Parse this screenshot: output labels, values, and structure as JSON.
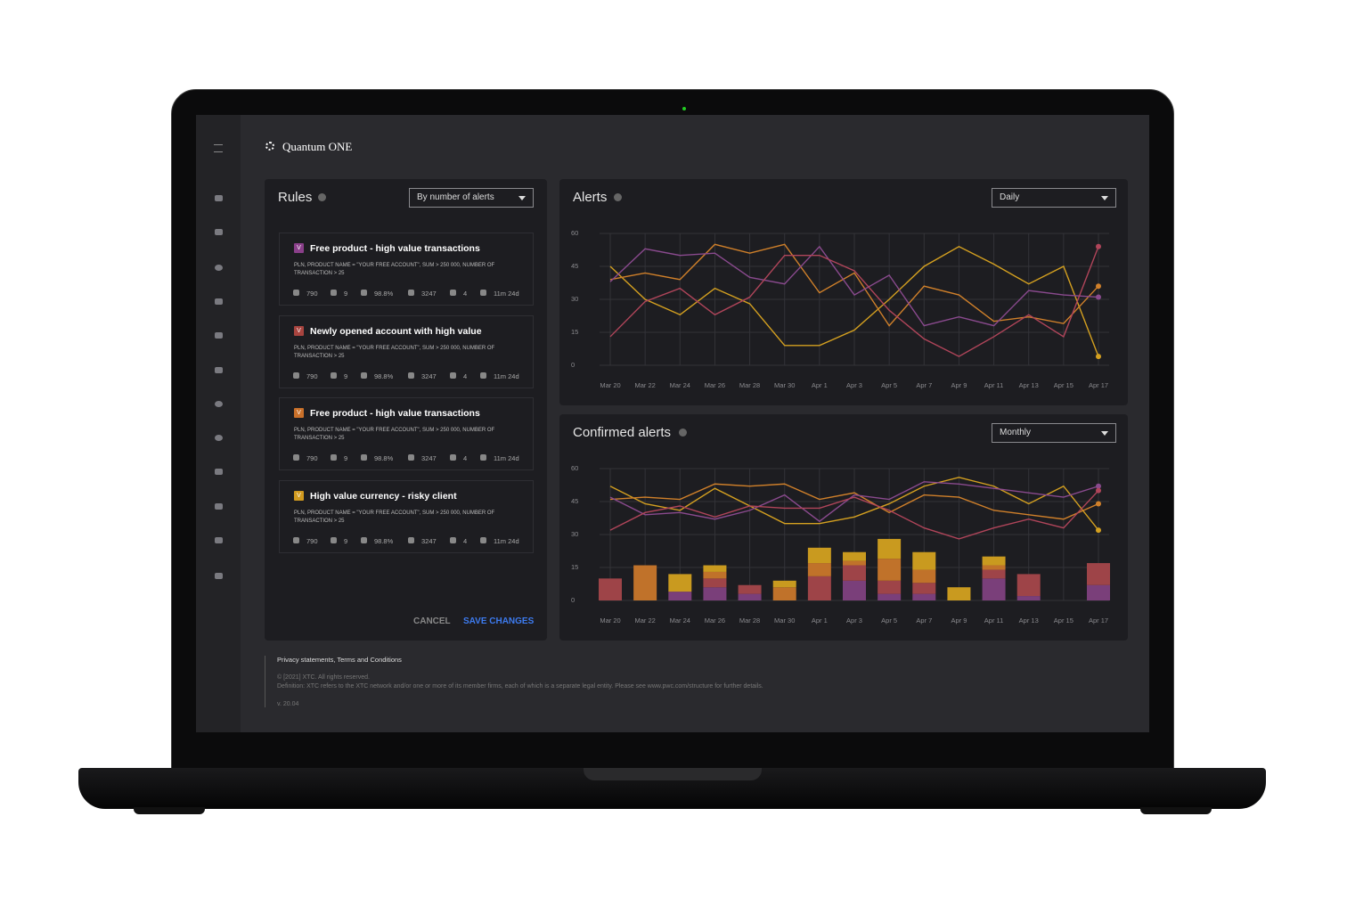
{
  "header": {
    "title": "Quantum ONE"
  },
  "rules": {
    "title": "Rules",
    "dropdown": "By number of alerts",
    "cards": [
      {
        "badge": "V",
        "color": "#8a3f8a",
        "title": "Free product - high value transactions",
        "description": "PLN, PRODUCT NAME = \"YOUR FREE ACCOUNT\", SUM > 250 000, NUMBER OF TRANSACTION > 25",
        "stats": [
          "790",
          "9",
          "98.8%",
          "3247",
          "4",
          "11m 24d"
        ]
      },
      {
        "badge": "V",
        "color": "#a8443f",
        "title": "Newly opened account with high value",
        "description": "PLN, PRODUCT NAME = \"YOUR FREE ACCOUNT\", SUM > 250 000, NUMBER OF TRANSACTION > 25",
        "stats": [
          "790",
          "9",
          "98.8%",
          "3247",
          "4",
          "11m 24d"
        ]
      },
      {
        "badge": "V",
        "color": "#c9702a",
        "title": "Free product - high value transactions",
        "description": "PLN, PRODUCT NAME = \"YOUR FREE ACCOUNT\", SUM > 250 000, NUMBER OF TRANSACTION > 25",
        "stats": [
          "790",
          "9",
          "98.8%",
          "3247",
          "4",
          "11m 24d"
        ]
      },
      {
        "badge": "V",
        "color": "#d19a1f",
        "title": "High value currency - risky client",
        "description": "PLN, PRODUCT NAME = \"YOUR FREE ACCOUNT\", SUM > 250 000, NUMBER OF TRANSACTION > 25",
        "stats": [
          "790",
          "9",
          "98.8%",
          "3247",
          "4",
          "11m 24d"
        ]
      }
    ],
    "cancel": "CANCEL",
    "save": "SAVE CHANGES"
  },
  "chart_data": [
    {
      "type": "line",
      "title": "Alerts",
      "dropdown": "Daily",
      "categories": [
        "Mar 20",
        "Mar 22",
        "Mar 24",
        "Mar 26",
        "Mar 28",
        "Mar 30",
        "Apr 1",
        "Apr 3",
        "Apr 5",
        "Apr 7",
        "Apr 9",
        "Apr 11",
        "Apr 13",
        "Apr 15",
        "Apr 17"
      ],
      "ylim": [
        0,
        60
      ],
      "yticks": [
        0,
        15,
        30,
        45,
        60
      ],
      "grid": true,
      "series": [
        {
          "kind": "line",
          "color": "#d4a020",
          "values": [
            45,
            30,
            23,
            35,
            28,
            9,
            9,
            16,
            30,
            45,
            54,
            46,
            37,
            45,
            4
          ]
        },
        {
          "kind": "line",
          "color": "#d0802a",
          "values": [
            39,
            42,
            39,
            55,
            51,
            55,
            33,
            42,
            18,
            36,
            32,
            20,
            22,
            19,
            36
          ]
        },
        {
          "kind": "line",
          "color": "#8a4a8e",
          "values": [
            38,
            53,
            50,
            51,
            40,
            37,
            54,
            32,
            41,
            18,
            22,
            18,
            34,
            32,
            31
          ]
        },
        {
          "kind": "line",
          "color": "#b0455a",
          "values": [
            13,
            29,
            35,
            23,
            31,
            50,
            50,
            43,
            25,
            12,
            4,
            13,
            23,
            13,
            54
          ]
        }
      ]
    },
    {
      "type": "line",
      "title": "Confirmed alerts",
      "dropdown": "Monthly",
      "categories": [
        "Mar 20",
        "Mar 22",
        "Mar 24",
        "Mar 26",
        "Mar 28",
        "Mar 30",
        "Apr 1",
        "Apr 3",
        "Apr 5",
        "Apr 7",
        "Apr 9",
        "Apr 11",
        "Apr 13",
        "Apr 15",
        "Apr 17"
      ],
      "ylim": [
        0,
        60
      ],
      "yticks": [
        0,
        15,
        30,
        45,
        60
      ],
      "grid": true,
      "series": [
        {
          "kind": "bar",
          "color": "#7a3f7a",
          "values": [
            0,
            0,
            4,
            6,
            3,
            0,
            0,
            9,
            3,
            3,
            0,
            10,
            2,
            0,
            7
          ]
        },
        {
          "kind": "bar",
          "color": "#9e4448",
          "values": [
            10,
            0,
            0,
            4,
            4,
            0,
            11,
            7,
            6,
            5,
            0,
            4,
            10,
            0,
            10
          ]
        },
        {
          "kind": "bar",
          "color": "#c0722a",
          "values": [
            0,
            16,
            0,
            3,
            0,
            6,
            6,
            2,
            10,
            6,
            0,
            2,
            0,
            0,
            0
          ]
        },
        {
          "kind": "bar",
          "color": "#c99a1f",
          "values": [
            0,
            0,
            8,
            3,
            0,
            3,
            7,
            4,
            9,
            8,
            6,
            4,
            0,
            0,
            0
          ]
        },
        {
          "kind": "line",
          "color": "#d4a020",
          "values": [
            52,
            44,
            41,
            51,
            43,
            35,
            35,
            38,
            44,
            52,
            56,
            52,
            44,
            52,
            32
          ]
        },
        {
          "kind": "line",
          "color": "#d0802a",
          "values": [
            46,
            47,
            46,
            53,
            52,
            53,
            46,
            49,
            40,
            48,
            47,
            41,
            39,
            37,
            44
          ]
        },
        {
          "kind": "line",
          "color": "#8a4a8e",
          "values": [
            47,
            39,
            40,
            37,
            41,
            48,
            36,
            48,
            46,
            54,
            53,
            51,
            49,
            47,
            52
          ]
        },
        {
          "kind": "line",
          "color": "#b0455a",
          "values": [
            32,
            40,
            43,
            38,
            43,
            42,
            42,
            47,
            41,
            33,
            28,
            33,
            37,
            33,
            50
          ]
        }
      ]
    }
  ],
  "footer": {
    "links": "Privacy statements, Terms and Conditions",
    "copyright": "© [2021] XTC. All rights reserved.",
    "definition": "Definition: XTC refers to the XTC network and/or one or more of its member firms, each of which is a separate legal entity. Please see www.pwc.com/structure for further details.",
    "version": "v. 20.04"
  }
}
